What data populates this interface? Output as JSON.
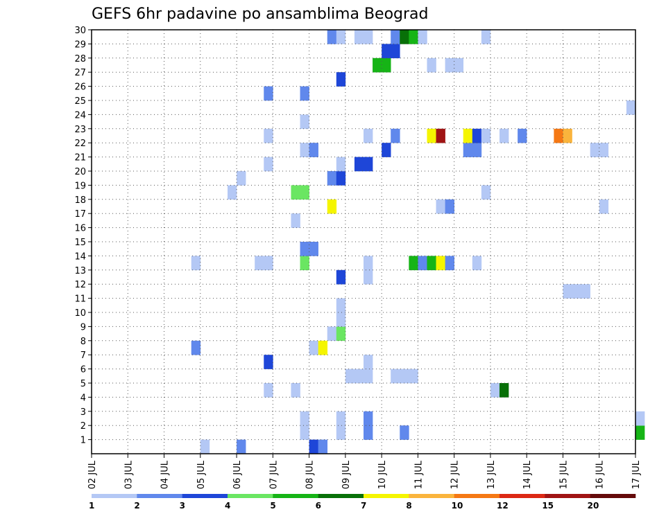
{
  "chart_data": {
    "type": "heatmap",
    "title": "GEFS 6hr padavine po ansamblima Beograd",
    "xlabel": "",
    "ylabel": "",
    "x_tick_labels": [
      "02 JUL",
      "03 JUL",
      "04 JUL",
      "05 JUL",
      "06 JUL",
      "07 JUL",
      "08 JUL",
      "09 JUL",
      "10 JUL",
      "11 JUL",
      "12 JUL",
      "13 JUL",
      "14 JUL",
      "15 JUL",
      "16 JUL",
      "17 JUL"
    ],
    "y_tick_labels": [
      "1",
      "2",
      "3",
      "4",
      "5",
      "6",
      "7",
      "8",
      "9",
      "10",
      "11",
      "12",
      "13",
      "14",
      "15",
      "16",
      "17",
      "18",
      "19",
      "20",
      "21",
      "22",
      "23",
      "24",
      "25",
      "26",
      "27",
      "28",
      "29",
      "30"
    ],
    "x_range_days": [
      0,
      15
    ],
    "y_range_members": [
      0,
      30
    ],
    "grid": true,
    "colorbar": {
      "position": "bottom",
      "labels": [
        "1",
        "2",
        "3",
        "4",
        "5",
        "6",
        "7",
        "8",
        "10",
        "12",
        "15",
        "20"
      ],
      "colors": [
        "#b4c8f5",
        "#6088ec",
        "#1e46d8",
        "#6ae662",
        "#16b416",
        "#087008",
        "#f5f500",
        "#fab43c",
        "#f57814",
        "#dc2814",
        "#a01414",
        "#640a0a"
      ]
    },
    "cells": [
      {
        "d": 6.0,
        "m": 0,
        "c": 2
      },
      {
        "d": 6.25,
        "m": 0,
        "c": 1
      },
      {
        "d": 4.0,
        "m": 0,
        "c": 1
      },
      {
        "d": 3.0,
        "m": 0,
        "c": 0
      },
      {
        "d": 5.75,
        "m": 1,
        "c": 0
      },
      {
        "d": 6.75,
        "m": 1,
        "c": 0
      },
      {
        "d": 7.5,
        "m": 1,
        "c": 1
      },
      {
        "d": 8.5,
        "m": 1,
        "c": 1
      },
      {
        "d": 15.0,
        "m": 1,
        "c": 4
      },
      {
        "d": 5.75,
        "m": 2,
        "c": 0
      },
      {
        "d": 6.75,
        "m": 2,
        "c": 0
      },
      {
        "d": 7.5,
        "m": 2,
        "c": 1
      },
      {
        "d": 15.0,
        "m": 2,
        "c": 0
      },
      {
        "d": 4.75,
        "m": 4,
        "c": 0
      },
      {
        "d": 5.5,
        "m": 4,
        "c": 0
      },
      {
        "d": 11.0,
        "m": 4,
        "c": 0
      },
      {
        "d": 11.25,
        "m": 4,
        "c": 5
      },
      {
        "d": 7.0,
        "m": 5,
        "c": 0
      },
      {
        "d": 7.25,
        "m": 5,
        "c": 0
      },
      {
        "d": 7.5,
        "m": 5,
        "c": 0
      },
      {
        "d": 8.25,
        "m": 5,
        "c": 0
      },
      {
        "d": 8.5,
        "m": 5,
        "c": 0
      },
      {
        "d": 8.75,
        "m": 5,
        "c": 0
      },
      {
        "d": 4.75,
        "m": 6,
        "c": 2
      },
      {
        "d": 7.5,
        "m": 6,
        "c": 0
      },
      {
        "d": 2.75,
        "m": 7,
        "c": 1
      },
      {
        "d": 6.0,
        "m": 7,
        "c": 0
      },
      {
        "d": 6.25,
        "m": 7,
        "c": 6
      },
      {
        "d": 6.5,
        "m": 8,
        "c": 0
      },
      {
        "d": 6.75,
        "m": 8,
        "c": 3
      },
      {
        "d": 6.75,
        "m": 9,
        "c": 0
      },
      {
        "d": 6.75,
        "m": 10,
        "c": 0
      },
      {
        "d": 13.0,
        "m": 11,
        "c": 0
      },
      {
        "d": 13.25,
        "m": 11,
        "c": 0
      },
      {
        "d": 13.5,
        "m": 11,
        "c": 0
      },
      {
        "d": 6.75,
        "m": 12,
        "c": 2
      },
      {
        "d": 7.5,
        "m": 12,
        "c": 0
      },
      {
        "d": 2.75,
        "m": 13,
        "c": 0
      },
      {
        "d": 4.5,
        "m": 13,
        "c": 0
      },
      {
        "d": 4.75,
        "m": 13,
        "c": 0
      },
      {
        "d": 5.75,
        "m": 13,
        "c": 3
      },
      {
        "d": 7.5,
        "m": 13,
        "c": 0
      },
      {
        "d": 8.75,
        "m": 13,
        "c": 4
      },
      {
        "d": 9.0,
        "m": 13,
        "c": 1
      },
      {
        "d": 9.25,
        "m": 13,
        "c": 4
      },
      {
        "d": 9.5,
        "m": 13,
        "c": 6
      },
      {
        "d": 9.75,
        "m": 13,
        "c": 1
      },
      {
        "d": 10.5,
        "m": 13,
        "c": 0
      },
      {
        "d": 5.75,
        "m": 14,
        "c": 1
      },
      {
        "d": 6.0,
        "m": 14,
        "c": 1
      },
      {
        "d": 5.5,
        "m": 16,
        "c": 0
      },
      {
        "d": 6.5,
        "m": 17,
        "c": 6
      },
      {
        "d": 9.5,
        "m": 17,
        "c": 0
      },
      {
        "d": 9.75,
        "m": 17,
        "c": 1
      },
      {
        "d": 14.0,
        "m": 17,
        "c": 0
      },
      {
        "d": 3.75,
        "m": 18,
        "c": 0
      },
      {
        "d": 5.5,
        "m": 18,
        "c": 3
      },
      {
        "d": 5.75,
        "m": 18,
        "c": 3
      },
      {
        "d": 10.75,
        "m": 18,
        "c": 0
      },
      {
        "d": 4.0,
        "m": 19,
        "c": 0
      },
      {
        "d": 6.5,
        "m": 19,
        "c": 1
      },
      {
        "d": 6.75,
        "m": 19,
        "c": 2
      },
      {
        "d": 4.75,
        "m": 20,
        "c": 0
      },
      {
        "d": 6.75,
        "m": 20,
        "c": 0
      },
      {
        "d": 7.25,
        "m": 20,
        "c": 2
      },
      {
        "d": 7.5,
        "m": 20,
        "c": 2
      },
      {
        "d": 5.75,
        "m": 21,
        "c": 0
      },
      {
        "d": 6.0,
        "m": 21,
        "c": 1
      },
      {
        "d": 8.0,
        "m": 21,
        "c": 2
      },
      {
        "d": 10.25,
        "m": 21,
        "c": 1
      },
      {
        "d": 10.5,
        "m": 21,
        "c": 1
      },
      {
        "d": 13.75,
        "m": 21,
        "c": 0
      },
      {
        "d": 14.0,
        "m": 21,
        "c": 0
      },
      {
        "d": 4.75,
        "m": 22,
        "c": 0
      },
      {
        "d": 7.5,
        "m": 22,
        "c": 0
      },
      {
        "d": 8.25,
        "m": 22,
        "c": 1
      },
      {
        "d": 9.25,
        "m": 22,
        "c": 6
      },
      {
        "d": 9.5,
        "m": 22,
        "c": 10
      },
      {
        "d": 10.25,
        "m": 22,
        "c": 6
      },
      {
        "d": 10.5,
        "m": 22,
        "c": 2
      },
      {
        "d": 10.75,
        "m": 22,
        "c": 0
      },
      {
        "d": 11.25,
        "m": 22,
        "c": 0
      },
      {
        "d": 11.75,
        "m": 22,
        "c": 1
      },
      {
        "d": 12.75,
        "m": 22,
        "c": 8
      },
      {
        "d": 13.0,
        "m": 22,
        "c": 7
      },
      {
        "d": 5.75,
        "m": 23,
        "c": 0
      },
      {
        "d": 14.75,
        "m": 24,
        "c": 0
      },
      {
        "d": 4.75,
        "m": 25,
        "c": 1
      },
      {
        "d": 5.75,
        "m": 25,
        "c": 1
      },
      {
        "d": 6.75,
        "m": 26,
        "c": 2
      },
      {
        "d": 7.75,
        "m": 27,
        "c": 4
      },
      {
        "d": 8.0,
        "m": 27,
        "c": 4
      },
      {
        "d": 9.25,
        "m": 27,
        "c": 0
      },
      {
        "d": 9.75,
        "m": 27,
        "c": 0
      },
      {
        "d": 10.0,
        "m": 27,
        "c": 0
      },
      {
        "d": 8.0,
        "m": 28,
        "c": 2
      },
      {
        "d": 8.25,
        "m": 28,
        "c": 2
      },
      {
        "d": 6.5,
        "m": 29,
        "c": 1
      },
      {
        "d": 6.75,
        "m": 29,
        "c": 0
      },
      {
        "d": 7.25,
        "m": 29,
        "c": 0
      },
      {
        "d": 7.5,
        "m": 29,
        "c": 0
      },
      {
        "d": 8.25,
        "m": 29,
        "c": 1
      },
      {
        "d": 8.5,
        "m": 29,
        "c": 5
      },
      {
        "d": 8.75,
        "m": 29,
        "c": 4
      },
      {
        "d": 9.0,
        "m": 29,
        "c": 0
      },
      {
        "d": 10.75,
        "m": 29,
        "c": 0
      }
    ]
  }
}
